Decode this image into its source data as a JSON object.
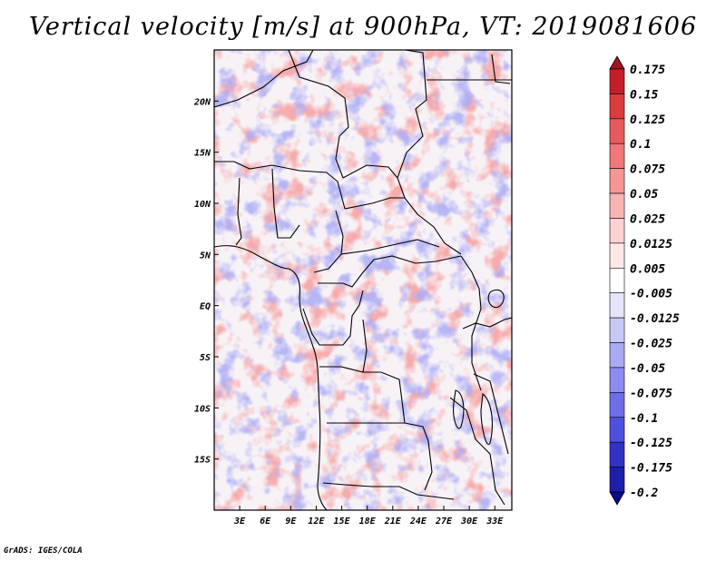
{
  "title": "Vertical velocity [m/s] at 900hPa, VT: 2019081606",
  "credit": "GrADS: IGES/COLA",
  "map": {
    "lon_range": [
      0,
      35
    ],
    "lat_range": [
      -20,
      25
    ],
    "lat_ticks": [
      "20N",
      "15N",
      "10N",
      "5N",
      "EQ",
      "5S",
      "10S",
      "15S"
    ],
    "lon_ticks": [
      "3E",
      "6E",
      "9E",
      "12E",
      "15E",
      "18E",
      "21E",
      "24E",
      "27E",
      "30E",
      "33E"
    ],
    "field": "Vertical velocity",
    "units": "m/s",
    "level": "900hPa",
    "valid_time": "2019081606"
  },
  "colorbar": {
    "labels": [
      "0.175",
      "0.15",
      "0.125",
      "0.1",
      "0.075",
      "0.05",
      "0.025",
      "0.0125",
      "0.005",
      "-0.005",
      "-0.0125",
      "-0.025",
      "-0.05",
      "-0.075",
      "-0.1",
      "-0.125",
      "-0.175",
      "-0.2"
    ],
    "colors": [
      "#a0141e",
      "#c41e28",
      "#dc3c3c",
      "#e85a5a",
      "#f07878",
      "#f49696",
      "#f8b4b4",
      "#fcd2d2",
      "#fde8e8",
      "#ffffff",
      "#e4e4fc",
      "#c8c8f8",
      "#aaaaf4",
      "#8c8cf0",
      "#6e6ee8",
      "#5050e0",
      "#3232c8",
      "#1e1eaa",
      "#0a0a8c"
    ]
  }
}
